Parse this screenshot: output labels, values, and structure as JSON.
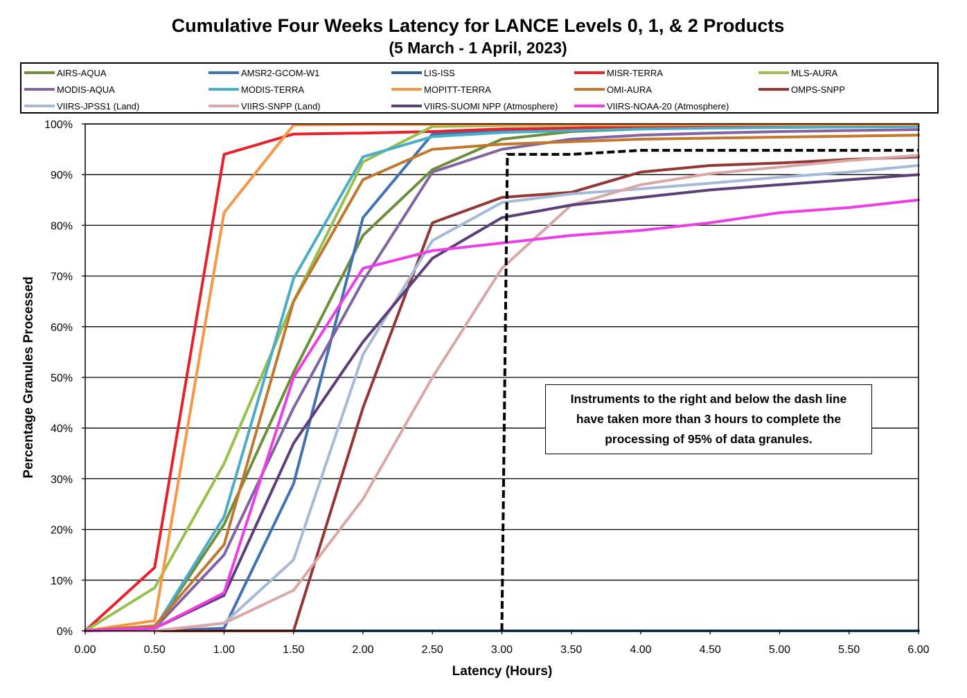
{
  "title": "Cumulative Four Weeks Latency  for LANCE Levels 0, 1, & 2 Products",
  "subtitle": "(5  March   - 1  April,  2023)",
  "annotation": "Instruments to the right and below the dash line have taken more than 3 hours to complete the processing of 95% of data granules.",
  "chart_data": {
    "type": "line",
    "title": "Cumulative Four Weeks Latency  for LANCE Levels 0, 1, & 2 Products",
    "subtitle": "(5  March   - 1  April,  2023)",
    "xlabel": "Latency (Hours)",
    "ylabel": "Percentage Granules Processed",
    "x": [
      0,
      0.5,
      1,
      1.5,
      2,
      2.5,
      3,
      3.5,
      4,
      4.5,
      5,
      5.5,
      6
    ],
    "x_tick_labels": [
      "0.00",
      "0.50",
      "1.00",
      "1.50",
      "2.00",
      "2.50",
      "3.00",
      "3.50",
      "4.00",
      "4.50",
      "5.00",
      "5.50",
      "6.00"
    ],
    "y_tick_labels": [
      "0%",
      "10%",
      "20%",
      "30%",
      "40%",
      "50%",
      "60%",
      "70%",
      "80%",
      "90%",
      "100%"
    ],
    "xlim": [
      0,
      6
    ],
    "ylim": [
      0,
      100
    ],
    "grid": "horizontal",
    "legend_position": "top",
    "series": [
      {
        "name": "AIRS-AQUA",
        "color": "#6e8f3a",
        "values": [
          0,
          0.5,
          21,
          51,
          78,
          91,
          97,
          98.5,
          99,
          99.3,
          99.5,
          99.6,
          99.7
        ]
      },
      {
        "name": "AMSR2-GCOM-W1",
        "color": "#3f72b5",
        "values": [
          0,
          0,
          0.5,
          29,
          81.5,
          98,
          98.8,
          99,
          99.2,
          99.3,
          99.4,
          99.5,
          99.6
        ]
      },
      {
        "name": "LIS-ISS",
        "color": "#2e5b8f",
        "values": [
          0,
          0,
          0,
          0,
          0,
          0,
          0,
          0,
          0,
          0,
          0,
          0,
          0
        ]
      },
      {
        "name": "MISR-TERRA",
        "color": "#e8202a",
        "values": [
          0,
          12.5,
          94,
          98,
          98.2,
          98.5,
          99,
          99.2,
          99.4,
          99.5,
          99.6,
          99.7,
          99.8
        ]
      },
      {
        "name": "MLS-AURA",
        "color": "#96bf4d",
        "values": [
          0,
          8.5,
          33,
          65,
          92.5,
          99.5,
          99.7,
          99.8,
          99.8,
          99.9,
          99.9,
          99.9,
          99.9
        ]
      },
      {
        "name": "MODIS-AQUA",
        "color": "#8064a2",
        "values": [
          0,
          0.5,
          15,
          44,
          69,
          90.5,
          95,
          97,
          97.8,
          98.2,
          98.5,
          98.7,
          98.9
        ]
      },
      {
        "name": "MODIS-TERRA",
        "color": "#4bacc6",
        "values": [
          0,
          0.5,
          22.5,
          69.5,
          93.5,
          97.5,
          98.3,
          98.7,
          99,
          99.2,
          99.3,
          99.4,
          99.5
        ]
      },
      {
        "name": "MOPITT-TERRA",
        "color": "#f79646",
        "values": [
          0,
          2,
          82.5,
          99.8,
          99.9,
          99.9,
          99.9,
          99.9,
          99.9,
          99.9,
          99.9,
          99.9,
          99.9
        ]
      },
      {
        "name": "OMI-AURA",
        "color": "#c0782e",
        "values": [
          0,
          1,
          17,
          65,
          89,
          95,
          96,
          96.5,
          97,
          97.2,
          97.4,
          97.6,
          97.8
        ]
      },
      {
        "name": "OMPS-SNPP",
        "color": "#943634",
        "values": [
          0,
          0,
          0,
          0,
          44,
          80.5,
          85.5,
          86.5,
          90.5,
          91.8,
          92.3,
          93,
          93.5
        ]
      },
      {
        "name": "VIIRS-JPSS1 (Land)",
        "color": "#a5b9d8",
        "values": [
          0,
          0,
          1.5,
          14,
          54.5,
          77,
          84.5,
          86.2,
          87.2,
          88.3,
          89.5,
          90.5,
          91.8
        ]
      },
      {
        "name": "VIIRS-SNPP (Land)",
        "color": "#d9a8a6",
        "values": [
          0,
          0,
          1.5,
          8,
          26,
          50,
          71.5,
          84,
          88,
          90.2,
          91.5,
          92.8,
          93.8
        ]
      },
      {
        "name": "VIIRS-SUOMI NPP (Atmosphere)",
        "color": "#5c3f7a",
        "values": [
          0,
          0.5,
          7,
          37,
          57,
          73.5,
          81.5,
          84,
          85.5,
          87,
          88,
          89,
          90
        ]
      },
      {
        "name": "VIIRS-NOAA-20 (Atmosphere)",
        "color": "#ee3de6",
        "values": [
          0,
          0.5,
          7.5,
          50,
          71.5,
          75,
          76.5,
          78,
          79,
          80.5,
          82.5,
          83.5,
          85
        ]
      }
    ],
    "threshold_line": {
      "style": "dashed",
      "color": "#000000",
      "points": [
        [
          3,
          0
        ],
        [
          3.04,
          94
        ],
        [
          3.5,
          94
        ],
        [
          4,
          94.8
        ],
        [
          6,
          94.8
        ]
      ]
    }
  }
}
